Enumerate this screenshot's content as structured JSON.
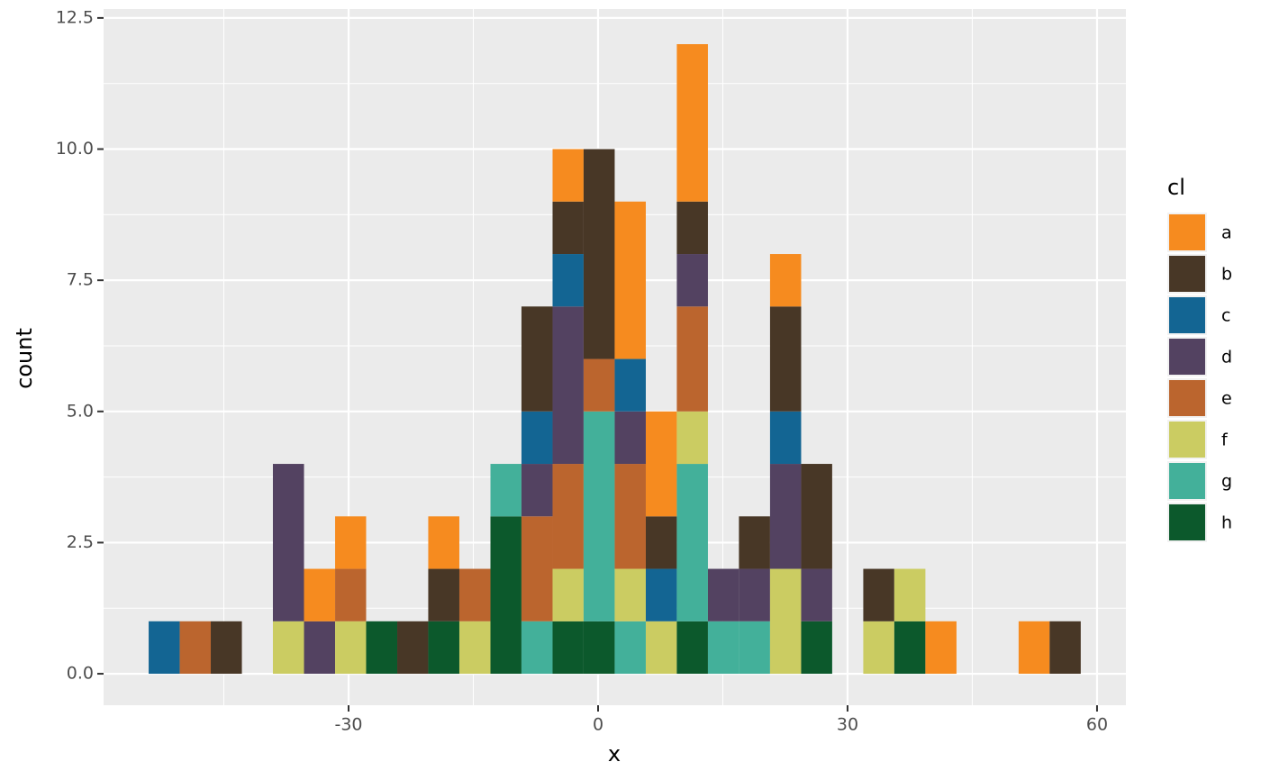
{
  "chart_data": {
    "type": "histogram",
    "xlabel": "x",
    "ylabel": "count",
    "legend_title": "cl",
    "legend_position": "right",
    "stacked": true,
    "grid": true,
    "bins": [
      -54.04,
      -50.3,
      -46.57,
      -42.83,
      -39.1,
      -35.36,
      -31.62,
      -27.89,
      -24.15,
      -20.42,
      -16.68,
      -12.94,
      -9.21,
      -5.47,
      -1.74,
      2.0,
      5.74,
      9.47,
      13.21,
      16.94,
      20.68,
      24.42,
      28.15,
      31.89,
      35.62,
      39.36,
      43.1,
      46.83,
      50.57,
      54.3,
      58.04
    ],
    "series": [
      {
        "name": "a",
        "color": "#f68b1f",
        "values": [
          0,
          0,
          0,
          0,
          0,
          1,
          1,
          0,
          0,
          1,
          0,
          0,
          0,
          1,
          0,
          3,
          2,
          3,
          0,
          0,
          1,
          0,
          0,
          0,
          0,
          1,
          0,
          0,
          1,
          0
        ]
      },
      {
        "name": "b",
        "color": "#483726",
        "values": [
          0,
          0,
          1,
          0,
          0,
          0,
          0,
          0,
          1,
          1,
          0,
          0,
          2,
          1,
          4,
          0,
          1,
          1,
          0,
          1,
          2,
          2,
          0,
          1,
          0,
          0,
          0,
          0,
          0,
          1
        ]
      },
      {
        "name": "c",
        "color": "#136593",
        "values": [
          1,
          0,
          0,
          0,
          0,
          0,
          0,
          0,
          0,
          0,
          0,
          0,
          1,
          1,
          0,
          1,
          1,
          0,
          0,
          0,
          1,
          0,
          0,
          0,
          0,
          0,
          0,
          0,
          0,
          0
        ]
      },
      {
        "name": "d",
        "color": "#534261",
        "values": [
          0,
          0,
          0,
          0,
          3,
          1,
          0,
          0,
          0,
          0,
          0,
          0,
          1,
          3,
          0,
          1,
          0,
          1,
          1,
          1,
          2,
          1,
          0,
          0,
          0,
          0,
          0,
          0,
          0,
          0
        ]
      },
      {
        "name": "e",
        "color": "#bb652e",
        "values": [
          0,
          1,
          0,
          0,
          0,
          0,
          1,
          0,
          0,
          0,
          1,
          0,
          2,
          2,
          1,
          2,
          0,
          2,
          0,
          0,
          0,
          0,
          0,
          0,
          0,
          0,
          0,
          0,
          0,
          0
        ]
      },
      {
        "name": "f",
        "color": "#cbcc62",
        "values": [
          0,
          0,
          0,
          0,
          1,
          0,
          1,
          0,
          0,
          0,
          1,
          0,
          0,
          1,
          0,
          1,
          1,
          1,
          0,
          0,
          2,
          0,
          0,
          1,
          1,
          0,
          0,
          0,
          0,
          0
        ]
      },
      {
        "name": "g",
        "color": "#43b09a",
        "values": [
          0,
          0,
          0,
          0,
          0,
          0,
          0,
          0,
          0,
          0,
          0,
          1,
          1,
          0,
          4,
          1,
          0,
          3,
          1,
          1,
          0,
          0,
          0,
          0,
          0,
          0,
          0,
          0,
          0,
          0
        ]
      },
      {
        "name": "h",
        "color": "#0c592c",
        "values": [
          0,
          0,
          0,
          0,
          0,
          0,
          0,
          1,
          0,
          1,
          0,
          3,
          0,
          1,
          1,
          0,
          0,
          1,
          0,
          0,
          0,
          1,
          0,
          0,
          1,
          0,
          0,
          0,
          0,
          0
        ]
      }
    ],
    "xlim": [
      -59.46,
      63.47
    ],
    "ylim": [
      -0.6,
      12.67
    ],
    "xticks": [
      -30,
      0,
      30,
      60
    ],
    "yticks": [
      {
        "value": 0,
        "label": "0.0"
      },
      2.5,
      {
        "value": 5,
        "label": "5.0"
      },
      7.5,
      {
        "value": 10,
        "label": "10.0"
      },
      12.5
    ]
  }
}
